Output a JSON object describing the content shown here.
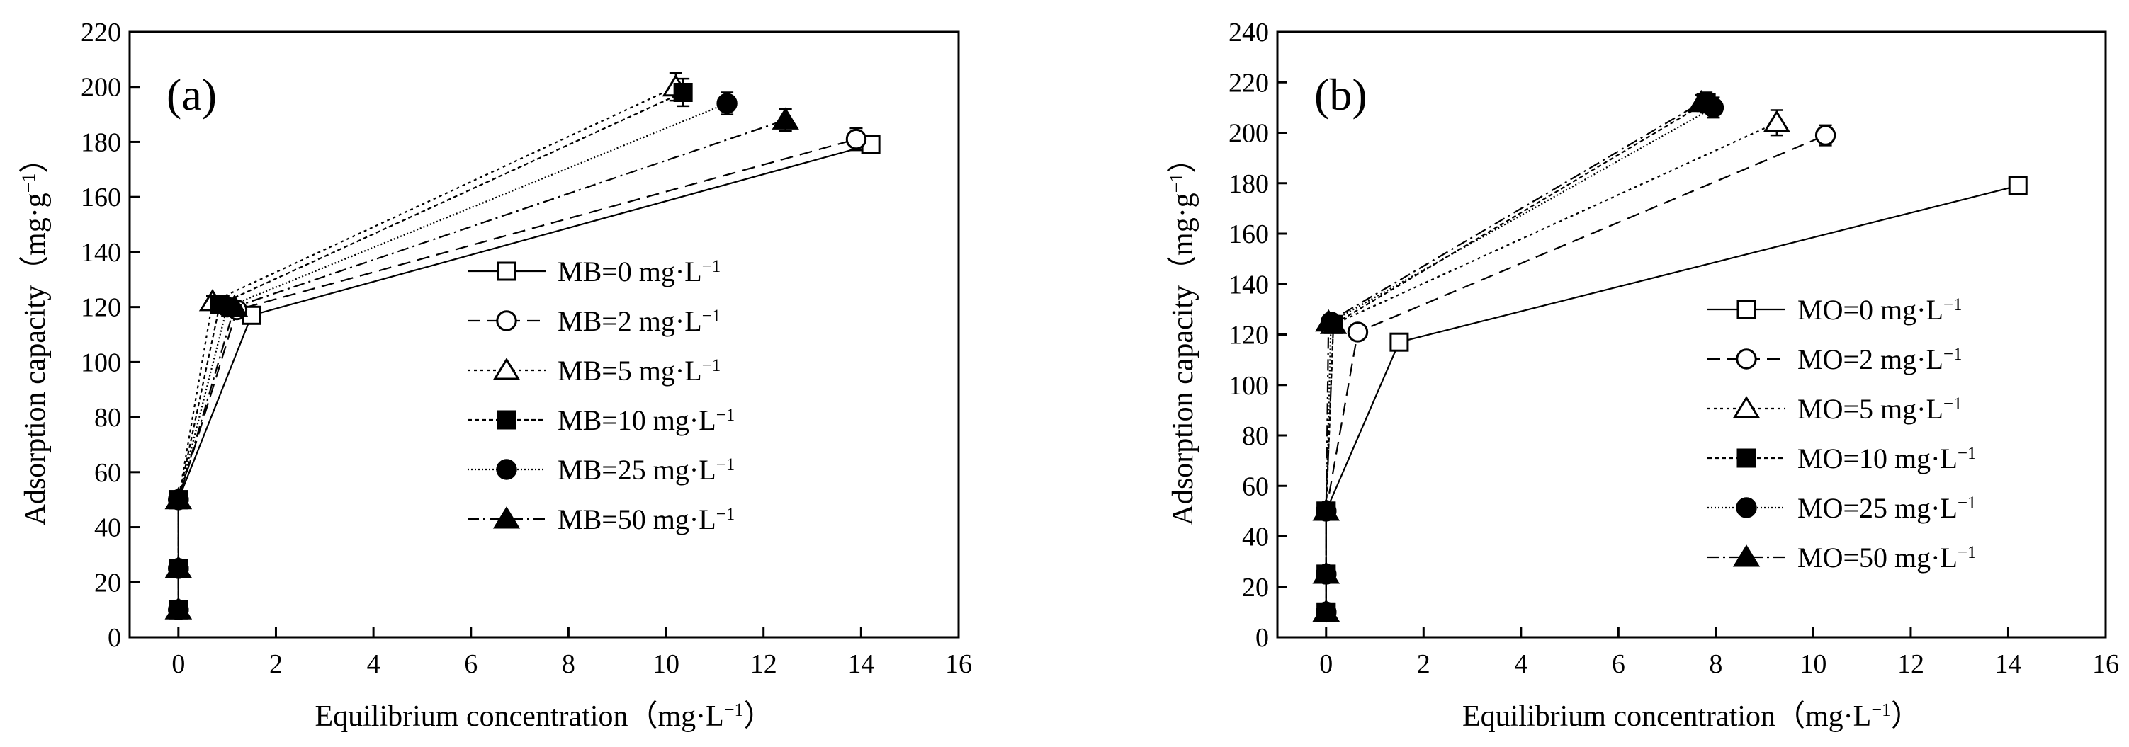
{
  "chart_data": [
    {
      "type": "line",
      "panel_label": "(a)",
      "xlabel": "Equilibrium concentration（mg·L⁻¹）",
      "ylabel": "Adsorption capacity（mg·g⁻¹）",
      "xlim": [
        -1,
        16
      ],
      "ylim": [
        0,
        220
      ],
      "xticks": [
        0,
        2,
        4,
        6,
        8,
        10,
        12,
        14,
        16
      ],
      "yticks": [
        0,
        20,
        40,
        60,
        80,
        100,
        120,
        140,
        160,
        180,
        200,
        220
      ],
      "grid": false,
      "legend_position": "center-right",
      "series": [
        {
          "name": "MB=0 mg·L⁻¹",
          "marker": "square-open",
          "dash": "",
          "x": [
            0,
            0,
            0,
            1.5,
            14.2
          ],
          "y": [
            10,
            25,
            50,
            117,
            179
          ],
          "err": [
            2,
            2,
            2,
            2,
            3
          ]
        },
        {
          "name": "MB=2 mg·L⁻¹",
          "marker": "circle-open",
          "dash": "18 10",
          "x": [
            0,
            0,
            0,
            1.2,
            13.9
          ],
          "y": [
            10,
            25,
            50,
            119,
            181
          ],
          "err": [
            2,
            2,
            2,
            2,
            4
          ]
        },
        {
          "name": "MB=5 mg·L⁻¹",
          "marker": "triangle-open",
          "dash": "4 5",
          "x": [
            0,
            0,
            0,
            0.7,
            10.2
          ],
          "y": [
            10,
            25,
            50,
            122,
            200
          ],
          "err": [
            2,
            2,
            2,
            2,
            5
          ]
        },
        {
          "name": "MB=10 mg·L⁻¹",
          "marker": "square",
          "dash": "6 4",
          "x": [
            0,
            0,
            0,
            0.85,
            10.35
          ],
          "y": [
            10,
            25,
            50,
            121,
            198
          ],
          "err": [
            2,
            2,
            2,
            2,
            5
          ]
        },
        {
          "name": "MB=25 mg·L⁻¹",
          "marker": "circle",
          "dash": "2 3",
          "x": [
            0,
            0,
            0,
            1.0,
            11.25
          ],
          "y": [
            10,
            25,
            50,
            120,
            194
          ],
          "err": [
            2,
            2,
            2,
            2,
            4
          ]
        },
        {
          "name": "MB=50 mg·L⁻¹",
          "marker": "triangle",
          "dash": "16 6 3 6",
          "x": [
            0,
            0,
            0,
            1.15,
            12.45
          ],
          "y": [
            10,
            25,
            50,
            120,
            188
          ],
          "err": [
            2,
            2,
            2,
            2,
            4
          ]
        }
      ]
    },
    {
      "type": "line",
      "panel_label": "(b)",
      "xlabel": "Equilibrium concentration（mg·L⁻¹）",
      "ylabel": "Adsorption capacity（mg·g⁻¹）",
      "xlim": [
        -1,
        16
      ],
      "ylim": [
        0,
        240
      ],
      "xticks": [
        0,
        2,
        4,
        6,
        8,
        10,
        12,
        14,
        16
      ],
      "yticks": [
        0,
        20,
        40,
        60,
        80,
        100,
        120,
        140,
        160,
        180,
        200,
        220,
        240
      ],
      "grid": false,
      "legend_position": "center-right",
      "series": [
        {
          "name": "MO=0 mg·L⁻¹",
          "marker": "square-open",
          "dash": "",
          "x": [
            0,
            0,
            0,
            1.5,
            14.2
          ],
          "y": [
            10,
            25,
            50,
            117,
            179
          ],
          "err": [
            2,
            2,
            2,
            2,
            2
          ]
        },
        {
          "name": "MO=2 mg·L⁻¹",
          "marker": "circle-open",
          "dash": "18 10",
          "x": [
            0,
            0,
            0,
            0.65,
            10.25
          ],
          "y": [
            10,
            25,
            50,
            121,
            199
          ],
          "err": [
            2,
            2,
            2,
            2,
            4
          ]
        },
        {
          "name": "MO=5 mg·L⁻¹",
          "marker": "triangle-open",
          "dash": "4 5",
          "x": [
            0,
            0,
            0,
            0.15,
            9.25
          ],
          "y": [
            10,
            25,
            50,
            124,
            204
          ],
          "err": [
            2,
            2,
            2,
            2,
            5
          ]
        },
        {
          "name": "MO=10 mg·L⁻¹",
          "marker": "square",
          "dash": "6 4",
          "x": [
            0,
            0,
            0,
            0.15,
            7.8
          ],
          "y": [
            10,
            25,
            50,
            124,
            212
          ],
          "err": [
            2,
            2,
            2,
            2,
            4
          ]
        },
        {
          "name": "MO=25 mg·L⁻¹",
          "marker": "circle",
          "dash": "2 3",
          "x": [
            0,
            0,
            0,
            0.1,
            7.95
          ],
          "y": [
            10,
            25,
            50,
            125,
            210
          ],
          "err": [
            2,
            2,
            2,
            2,
            4
          ]
        },
        {
          "name": "MO=50 mg·L⁻¹",
          "marker": "triangle",
          "dash": "16 6 3 6",
          "x": [
            0,
            0,
            0,
            0.05,
            7.7
          ],
          "y": [
            10,
            25,
            50,
            125,
            212
          ],
          "err": [
            2,
            2,
            2,
            2,
            3
          ]
        }
      ]
    }
  ]
}
